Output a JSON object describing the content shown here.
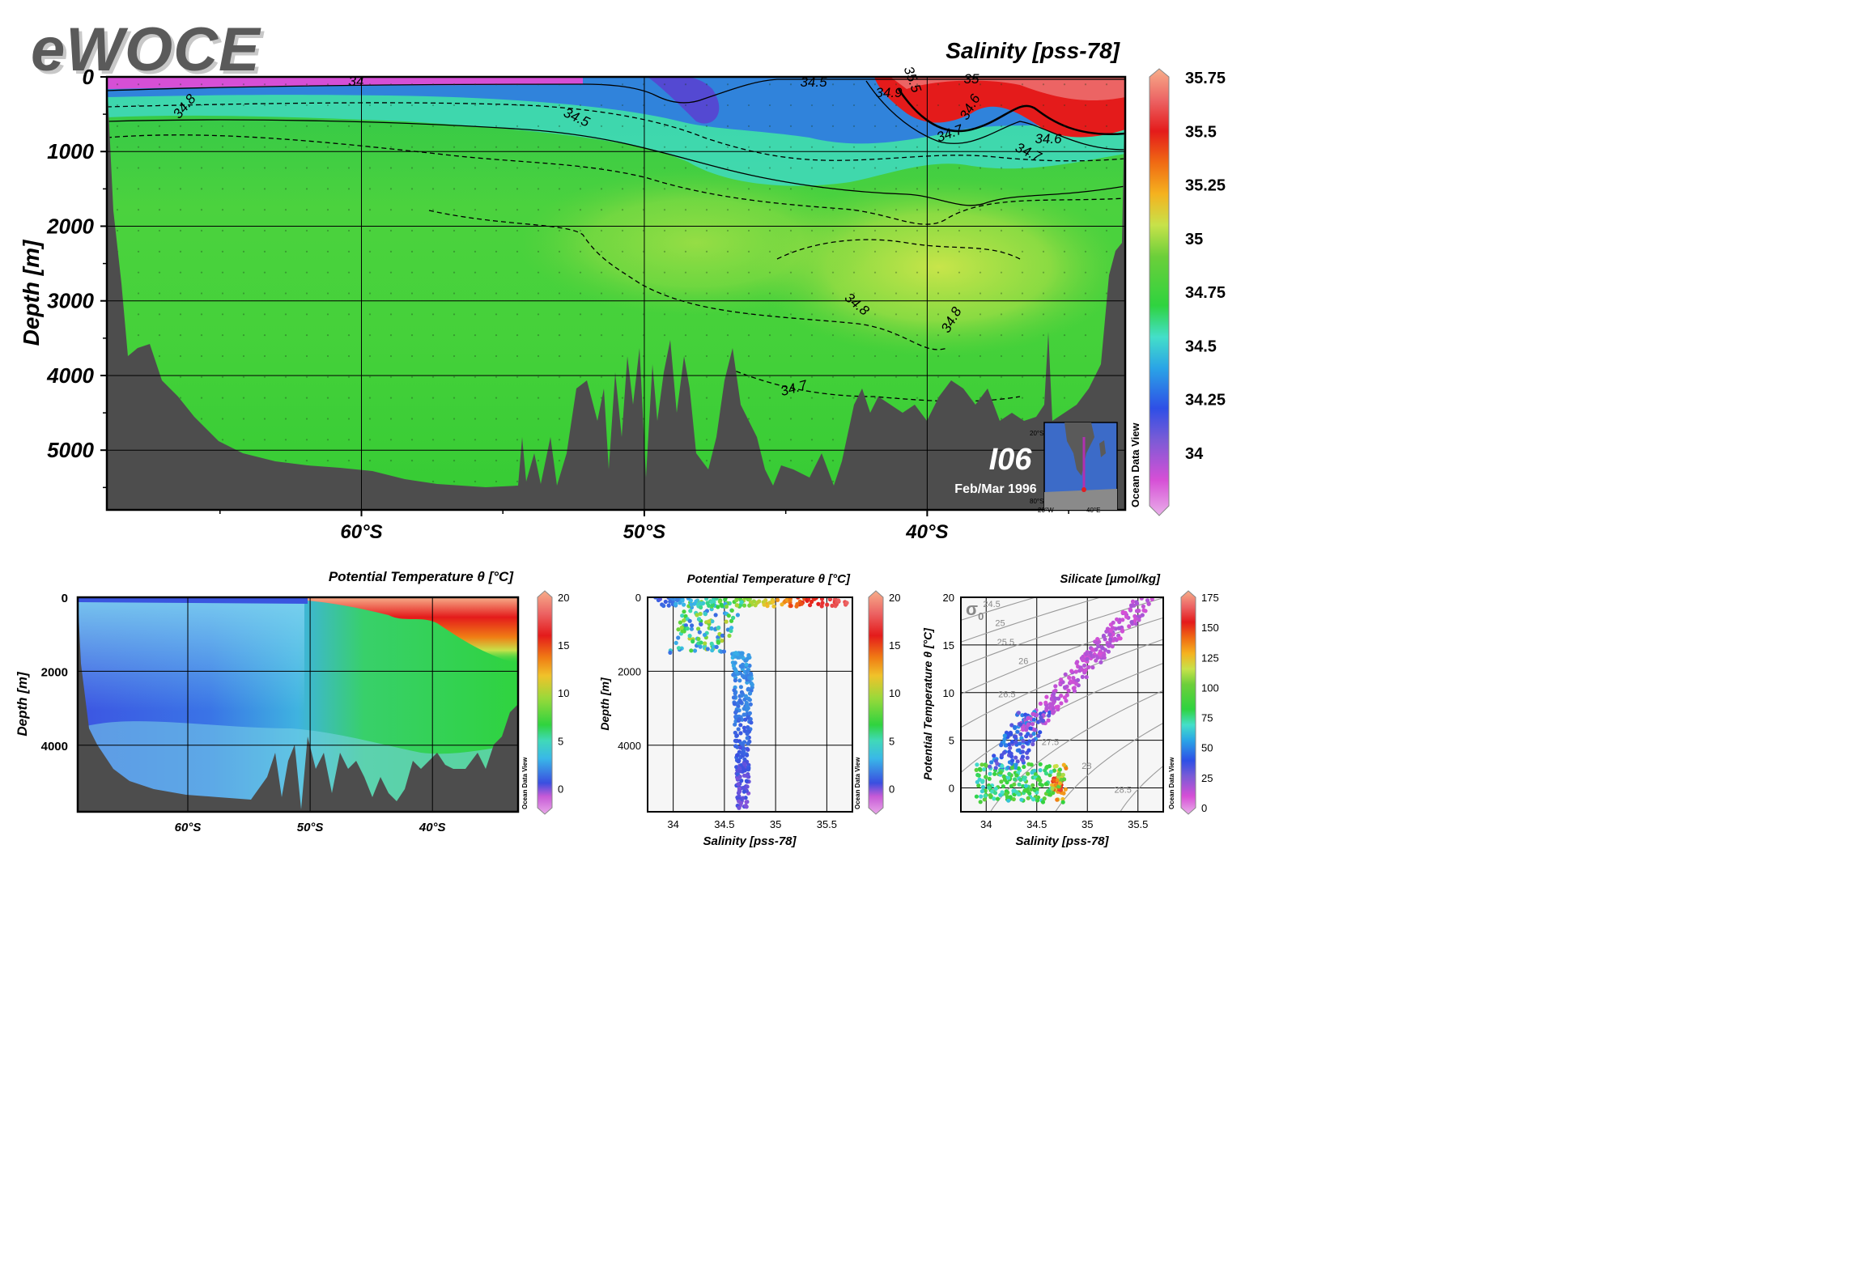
{
  "logo": "eWOCE",
  "main": {
    "title": "Salinity [pss-78]",
    "ylabel": "Depth [m]",
    "yticks": [
      "0",
      "1000",
      "2000",
      "3000",
      "4000",
      "5000"
    ],
    "xticks": [
      "60°S",
      "50°S",
      "40°S"
    ],
    "colorbar_ticks": [
      "35.75",
      "35.5",
      "35.25",
      "35",
      "34.75",
      "34.5",
      "34.25",
      "34"
    ],
    "contour_labels": [
      "34",
      "34.5",
      "35.5",
      "34.9",
      "35",
      "34.6",
      "34.7",
      "34.6",
      "34.7",
      "34.8",
      "34.5",
      "34.8",
      "34.8",
      "34.7"
    ],
    "section": "I06",
    "date": "Feb/Mar 1996",
    "odv_label": "Ocean Data View",
    "map_labels": [
      "20°S",
      "80°S",
      "20°W",
      "40°E"
    ]
  },
  "theta_section": {
    "title": "Potential Temperature θ [°C]",
    "ylabel": "Depth [m]",
    "yticks": [
      "0",
      "2000",
      "4000"
    ],
    "xticks": [
      "60°S",
      "50°S",
      "40°S"
    ],
    "colorbar_ticks": [
      "20",
      "15",
      "10",
      "5",
      "0"
    ],
    "odv_label": "Ocean Data View"
  },
  "scatter_depth": {
    "title": "Potential Temperature θ [°C]",
    "ylabel": "Depth [m]",
    "xlabel": "Salinity [pss-78]",
    "yticks": [
      "0",
      "2000",
      "4000"
    ],
    "xticks": [
      "34",
      "34.5",
      "35",
      "35.5"
    ],
    "colorbar_ticks": [
      "20",
      "15",
      "10",
      "5",
      "0"
    ],
    "odv_label": "Ocean Data View"
  },
  "ts_plot": {
    "title": "Silicate [µmol/kg]",
    "ylabel": "Potential Temperature θ [°C]",
    "xlabel": "Salinity [pss-78]",
    "sigma_label": "σ",
    "sigma_sub": "0",
    "yticks": [
      "20",
      "15",
      "10",
      "5",
      "0"
    ],
    "xticks": [
      "34",
      "34.5",
      "35",
      "35.5"
    ],
    "sigma_labels": [
      "24.5",
      "25",
      "25.5",
      "26",
      "26.5",
      "27",
      "27.5",
      "28",
      "28.5"
    ],
    "colorbar_ticks": [
      "175",
      "150",
      "125",
      "100",
      "75",
      "50",
      "25",
      "0"
    ],
    "odv_label": "Ocean Data View"
  },
  "chart_data": [
    {
      "type": "heatmap",
      "title": "Salinity [pss-78]",
      "xlabel": "",
      "ylabel": "Depth [m]",
      "xlim": [
        -69,
        -33
      ],
      "ylim": [
        5800,
        0
      ],
      "colorbar_range": [
        33.75,
        35.75
      ],
      "contours": [
        34,
        34.5,
        34.6,
        34.7,
        34.8,
        34.9,
        35,
        35.5
      ],
      "inset_label": "I06",
      "inset_sublabel": "Feb/Mar 1996"
    },
    {
      "type": "heatmap",
      "title": "Potential Temperature θ [°C]",
      "ylabel": "Depth [m]",
      "ylim": [
        5800,
        0
      ],
      "colorbar_range": [
        -2,
        20
      ]
    },
    {
      "type": "scatter",
      "title": "Potential Temperature θ [°C]",
      "xlabel": "Salinity [pss-78]",
      "ylabel": "Depth [m]",
      "xlim": [
        33.75,
        35.75
      ],
      "ylim": [
        5800,
        0
      ],
      "color_range": [
        -2,
        20
      ]
    },
    {
      "type": "scatter",
      "title": "Silicate [µmol/kg]",
      "xlabel": "Salinity [pss-78]",
      "ylabel": "Potential Temperature θ [°C]",
      "xlim": [
        33.75,
        35.75
      ],
      "ylim": [
        -2.5,
        20
      ],
      "color_range": [
        0,
        175
      ]
    }
  ]
}
